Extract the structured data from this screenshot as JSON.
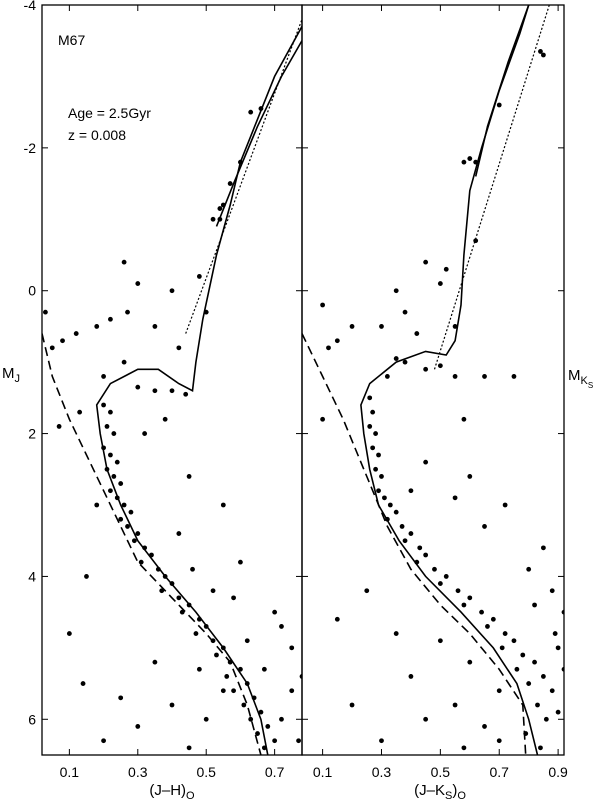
{
  "chart_data": [
    {
      "type": "scatter",
      "y_inverted": true,
      "xlim": [
        0.02,
        0.78
      ],
      "ylim": [
        -4,
        6.5
      ],
      "xticks": [
        0.1,
        0.3,
        0.5,
        0.7
      ],
      "yticks": [
        -4,
        -2,
        0,
        2,
        4,
        6
      ],
      "xlabel": [
        {
          "text": "(J–H)"
        },
        {
          "text": "O",
          "sub": 1
        }
      ],
      "ylabel": [
        {
          "text": "M"
        },
        {
          "text": "J",
          "sub": 1
        }
      ],
      "annotations": [
        "M67",
        "Age = 2.5Gyr",
        "z = 0.008"
      ],
      "series": [
        {
          "color": "#000000",
          "x": [
            0.2,
            0.22,
            0.21,
            0.23,
            0.2,
            0.22,
            0.24,
            0.21,
            0.23,
            0.25,
            0.22,
            0.24,
            0.26,
            0.28,
            0.25,
            0.27,
            0.3,
            0.29,
            0.32,
            0.34,
            0.31,
            0.36,
            0.38,
            0.4,
            0.37,
            0.42,
            0.45,
            0.43,
            0.48,
            0.5,
            0.47,
            0.52,
            0.55,
            0.53,
            0.57,
            0.6,
            0.56,
            0.62,
            0.58,
            0.64,
            0.61,
            0.66,
            0.63,
            0.68,
            0.65,
            0.7,
            0.67,
            0.72,
            0.75,
            0.77,
            0.3,
            0.35,
            0.4,
            0.44,
            0.55,
            0.54,
            0.57,
            0.6,
            0.63,
            0.66,
            0.54,
            0.27,
            0.22,
            0.18,
            0.08,
            0.05,
            0.03,
            0.12,
            0.35,
            0.4,
            0.42,
            0.3,
            0.48,
            0.5,
            0.52,
            0.32,
            0.38,
            0.45,
            0.55,
            0.6,
            0.7,
            0.75,
            0.1,
            0.14,
            0.15,
            0.2,
            0.3,
            0.4,
            0.45,
            0.35,
            0.5,
            0.62,
            0.58,
            0.67,
            0.72,
            0.78,
            0.07,
            0.13,
            0.26,
            0.46,
            0.42,
            0.52,
            0.55,
            0.48,
            0.25,
            0.18,
            0.26,
            0.2
          ],
          "y": [
            1.6,
            1.7,
            1.9,
            2.0,
            2.2,
            2.3,
            2.4,
            2.5,
            2.6,
            2.7,
            2.8,
            2.9,
            3.0,
            3.1,
            3.2,
            3.3,
            3.4,
            3.5,
            3.6,
            3.7,
            3.8,
            3.9,
            4.0,
            4.1,
            4.2,
            4.3,
            4.4,
            4.5,
            4.6,
            4.7,
            4.8,
            4.9,
            5.0,
            5.1,
            5.2,
            5.3,
            5.4,
            5.5,
            5.6,
            5.7,
            5.8,
            5.9,
            6.0,
            6.1,
            6.2,
            6.3,
            6.4,
            6.0,
            5.6,
            6.3,
            1.35,
            1.4,
            1.4,
            1.45,
            -1.2,
            -1.15,
            -1.5,
            -1.8,
            -2.5,
            -2.55,
            -1.0,
            0.3,
            0.4,
            0.5,
            0.7,
            0.8,
            0.3,
            0.6,
            0.5,
            0.0,
            0.8,
            -0.1,
            -0.2,
            0.3,
            -1.0,
            2.0,
            1.8,
            2.6,
            3.0,
            3.8,
            4.5,
            5.0,
            4.8,
            5.5,
            4.0,
            6.3,
            6.1,
            5.8,
            6.4,
            5.2,
            6.0,
            4.9,
            4.3,
            5.3,
            4.7,
            5.4,
            1.9,
            1.7,
            -0.4,
            3.9,
            3.4,
            4.2,
            5.6,
            5.3,
            5.7,
            3.0,
            1.0,
            1.2
          ]
        }
      ],
      "lines": [
        {
          "style": "solid",
          "x": [
            0.68,
            0.66,
            0.62,
            0.55,
            0.47,
            0.38,
            0.3,
            0.25,
            0.21,
            0.19,
            0.18,
            0.22,
            0.3,
            0.36,
            0.42,
            0.46,
            0.47,
            0.49,
            0.53,
            0.57,
            0.6,
            0.65,
            0.7,
            0.78
          ],
          "y": [
            6.5,
            6.0,
            5.5,
            5.0,
            4.5,
            4.0,
            3.5,
            3.0,
            2.5,
            2.0,
            1.6,
            1.3,
            1.1,
            1.1,
            1.3,
            1.4,
            1.0,
            0.4,
            -0.5,
            -1.2,
            -1.8,
            -2.4,
            -3.0,
            -3.7
          ]
        },
        {
          "style": "solid",
          "x": [
            0.53,
            0.58,
            0.65,
            0.72,
            0.78
          ],
          "y": [
            -0.9,
            -1.5,
            -2.3,
            -3.0,
            -3.5
          ]
        },
        {
          "style": "dashed",
          "x": [
            0.02,
            0.05,
            0.1,
            0.15,
            0.2,
            0.25,
            0.3,
            0.4,
            0.5,
            0.57,
            0.62,
            0.66
          ],
          "y": [
            0.6,
            1.2,
            1.8,
            2.3,
            2.8,
            3.3,
            3.8,
            4.3,
            4.8,
            5.2,
            5.8,
            6.5
          ]
        },
        {
          "style": "dotted",
          "x": [
            0.44,
            0.78
          ],
          "y": [
            0.6,
            -3.8
          ]
        }
      ]
    },
    {
      "type": "scatter",
      "y_inverted": true,
      "xlim": [
        0.03,
        0.92
      ],
      "ylim": [
        -4,
        6.5
      ],
      "xticks": [
        0.1,
        0.3,
        0.5,
        0.7,
        0.9
      ],
      "xlabel": [
        {
          "text": "(J–K"
        },
        {
          "text": "S",
          "sub": 1
        },
        {
          "text": ")"
        },
        {
          "text": "O",
          "sub": 1
        }
      ],
      "ylabel": [
        {
          "text": "M"
        },
        {
          "text": "K",
          "sub": 1
        },
        {
          "text": "S",
          "sub": 2
        }
      ],
      "series": [
        {
          "color": "#000000",
          "x": [
            0.26,
            0.27,
            0.26,
            0.28,
            0.27,
            0.29,
            0.28,
            0.3,
            0.29,
            0.31,
            0.33,
            0.35,
            0.32,
            0.37,
            0.4,
            0.38,
            0.43,
            0.45,
            0.42,
            0.48,
            0.52,
            0.5,
            0.56,
            0.6,
            0.58,
            0.64,
            0.68,
            0.66,
            0.72,
            0.75,
            0.71,
            0.78,
            0.82,
            0.76,
            0.85,
            0.8,
            0.88,
            0.83,
            0.9,
            0.86,
            0.79,
            0.84,
            0.92,
            0.89,
            0.7,
            0.65,
            0.55,
            0.6,
            0.32,
            0.38,
            0.45,
            0.5,
            0.55,
            0.58,
            0.6,
            0.62,
            0.85,
            0.84,
            0.7,
            0.38,
            0.35,
            0.3,
            0.2,
            0.15,
            0.12,
            0.1,
            0.45,
            0.5,
            0.55,
            0.42,
            0.58,
            0.65,
            0.75,
            0.62,
            0.52,
            0.45,
            0.55,
            0.65,
            0.8,
            0.88,
            0.92,
            0.15,
            0.2,
            0.3,
            0.45,
            0.4,
            0.35,
            0.58,
            0.1,
            0.4,
            0.6,
            0.72,
            0.85,
            0.25,
            0.5,
            0.7,
            0.9,
            0.82,
            0.35
          ],
          "y": [
            1.5,
            1.7,
            1.9,
            2.0,
            2.2,
            2.3,
            2.5,
            2.6,
            2.8,
            2.9,
            3.0,
            3.1,
            3.2,
            3.3,
            3.4,
            3.5,
            3.6,
            3.7,
            3.8,
            3.9,
            4.0,
            4.1,
            4.2,
            4.3,
            4.4,
            4.5,
            4.6,
            4.7,
            4.8,
            4.9,
            5.0,
            5.1,
            5.2,
            5.3,
            5.4,
            5.5,
            5.6,
            5.8,
            5.9,
            6.0,
            6.2,
            6.4,
            5.3,
            4.8,
            5.6,
            6.1,
            5.8,
            5.2,
            1.2,
            1.0,
            1.1,
            1.05,
            1.2,
            -1.8,
            -1.85,
            -1.8,
            -3.3,
            -3.35,
            -2.6,
            0.3,
            0.0,
            0.5,
            0.5,
            0.7,
            0.8,
            0.2,
            -0.4,
            -0.1,
            0.5,
            0.6,
            1.8,
            1.2,
            1.2,
            -0.7,
            -0.3,
            2.4,
            2.9,
            3.3,
            3.9,
            4.2,
            4.5,
            4.6,
            5.8,
            6.3,
            6.0,
            5.4,
            4.8,
            6.4,
            1.8,
            2.8,
            2.6,
            3.0,
            3.6,
            4.2,
            4.9,
            6.3,
            5.0,
            4.4,
            0.95
          ]
        }
      ],
      "lines": [
        {
          "style": "solid",
          "x": [
            0.83,
            0.8,
            0.76,
            0.68,
            0.57,
            0.45,
            0.36,
            0.29,
            0.26,
            0.24,
            0.23,
            0.26,
            0.35,
            0.45,
            0.52,
            0.55,
            0.57,
            0.58,
            0.6,
            0.64,
            0.7,
            0.77,
            0.8
          ],
          "y": [
            6.5,
            6.0,
            5.5,
            5.0,
            4.5,
            4.0,
            3.5,
            3.0,
            2.5,
            2.0,
            1.6,
            1.3,
            1.0,
            0.85,
            0.9,
            0.7,
            0.2,
            -0.5,
            -1.4,
            -2.0,
            -2.8,
            -3.6,
            -4.0
          ]
        },
        {
          "style": "solid",
          "x": [
            0.62,
            0.66,
            0.73,
            0.8
          ],
          "y": [
            -1.6,
            -2.3,
            -3.2,
            -4.0
          ]
        },
        {
          "style": "dashed",
          "x": [
            0.03,
            0.1,
            0.17,
            0.22,
            0.27,
            0.32,
            0.4,
            0.5,
            0.6,
            0.7,
            0.78,
            0.79
          ],
          "y": [
            0.6,
            1.2,
            1.8,
            2.3,
            2.8,
            3.3,
            3.9,
            4.4,
            4.8,
            5.3,
            5.8,
            6.5
          ]
        },
        {
          "style": "dotted",
          "x": [
            0.48,
            0.87
          ],
          "y": [
            1.1,
            -4.0
          ]
        }
      ]
    }
  ]
}
